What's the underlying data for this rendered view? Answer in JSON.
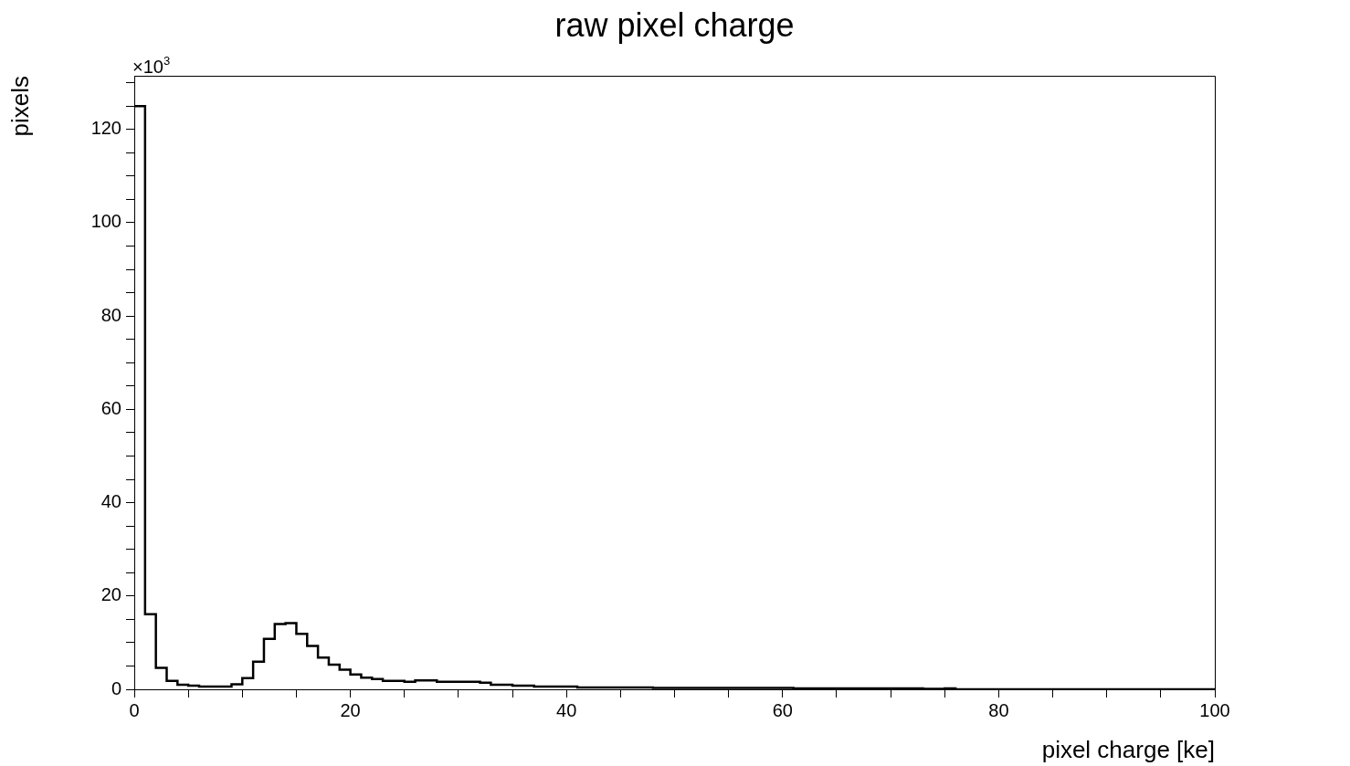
{
  "chart_data": {
    "type": "histogram",
    "title": "raw pixel charge",
    "xlabel": "pixel charge [ke]",
    "ylabel": "pixels",
    "annotations": [
      "×10$^{3}$"
    ],
    "bins": [
      0,
      1,
      2,
      3,
      4,
      5,
      6,
      7,
      8,
      9,
      10,
      11,
      12,
      13,
      14,
      15,
      16,
      17,
      18,
      19,
      20,
      21,
      22,
      23,
      24,
      25,
      26,
      27,
      28,
      29,
      30,
      31,
      32,
      33,
      34,
      35,
      36,
      37,
      38,
      39,
      40,
      41,
      42,
      43,
      44,
      45,
      46,
      47,
      48,
      49,
      50,
      51,
      52,
      53,
      54,
      55,
      56,
      57,
      58,
      59,
      60,
      61,
      62,
      63,
      64,
      65,
      66,
      67,
      68,
      69,
      70,
      71,
      72,
      73,
      74,
      75,
      76,
      77,
      78,
      79,
      80,
      81,
      82,
      83,
      84,
      85,
      86,
      87,
      88,
      89,
      90,
      91,
      92,
      93,
      94,
      95,
      96,
      97,
      98,
      99,
      100
    ],
    "values": [
      125,
      16.1,
      4.6,
      1.8,
      1.0,
      0.8,
      0.6,
      0.6,
      0.6,
      1.1,
      2.4,
      5.9,
      10.8,
      14.0,
      14.2,
      11.9,
      9.3,
      6.8,
      5.3,
      4.2,
      3.2,
      2.5,
      2.2,
      1.8,
      1.8,
      1.6,
      1.9,
      1.9,
      1.6,
      1.6,
      1.6,
      1.6,
      1.4,
      1.0,
      1.0,
      0.8,
      0.8,
      0.6,
      0.6,
      0.6,
      0.6,
      0.4,
      0.4,
      0.4,
      0.4,
      0.4,
      0.4,
      0.4,
      0.3,
      0.3,
      0.3,
      0.3,
      0.3,
      0.3,
      0.3,
      0.3,
      0.3,
      0.3,
      0.3,
      0.3,
      0.3,
      0.2,
      0.2,
      0.2,
      0.2,
      0.2,
      0.2,
      0.2,
      0.2,
      0.2,
      0.2,
      0.2,
      0.2,
      0.1,
      0.1,
      0.2,
      0,
      0,
      0,
      0,
      0,
      0,
      0,
      0,
      0,
      0,
      0,
      0,
      0,
      0,
      0,
      0,
      0,
      0,
      0,
      0,
      0,
      0,
      0,
      0
    ],
    "color": "#000000",
    "xlim": [
      0,
      100
    ],
    "xticks": [
      0,
      {
        "value": 5,
        "label": null
      },
      {
        "value": 10,
        "label": null
      },
      {
        "value": 15,
        "label": null
      },
      20,
      {
        "value": 25,
        "label": null
      },
      {
        "value": 30,
        "label": null
      },
      {
        "value": 35,
        "label": null
      },
      40,
      {
        "value": 45,
        "label": null
      },
      {
        "value": 50,
        "label": null
      },
      {
        "value": 55,
        "label": null
      },
      60,
      {
        "value": 65,
        "label": null
      },
      {
        "value": 70,
        "label": null
      },
      {
        "value": 75,
        "label": null
      },
      80,
      {
        "value": 85,
        "label": null
      },
      {
        "value": 90,
        "label": null
      },
      {
        "value": 95,
        "label": null
      },
      100
    ],
    "ylim": [
      0,
      131.5
    ],
    "yticks": [
      0,
      {
        "value": 5,
        "label": null
      },
      {
        "value": 10,
        "label": null
      },
      {
        "value": 15,
        "label": null
      },
      20,
      {
        "value": 25,
        "label": null
      },
      {
        "value": 30,
        "label": null
      },
      {
        "value": 35,
        "label": null
      },
      40,
      {
        "value": 45,
        "label": null
      },
      {
        "value": 50,
        "label": null
      },
      {
        "value": 55,
        "label": null
      },
      60,
      {
        "value": 65,
        "label": null
      },
      {
        "value": 70,
        "label": null
      },
      {
        "value": 75,
        "label": null
      },
      80,
      {
        "value": 85,
        "label": null
      },
      {
        "value": 90,
        "label": null
      },
      {
        "value": 95,
        "label": null
      },
      100,
      {
        "value": 105,
        "label": null
      },
      {
        "value": 110,
        "label": null
      },
      {
        "value": 115,
        "label": null
      },
      120,
      {
        "value": 125,
        "label": null
      },
      {
        "value": 130,
        "label": null
      }
    ],
    "grid": false,
    "legend": false
  }
}
